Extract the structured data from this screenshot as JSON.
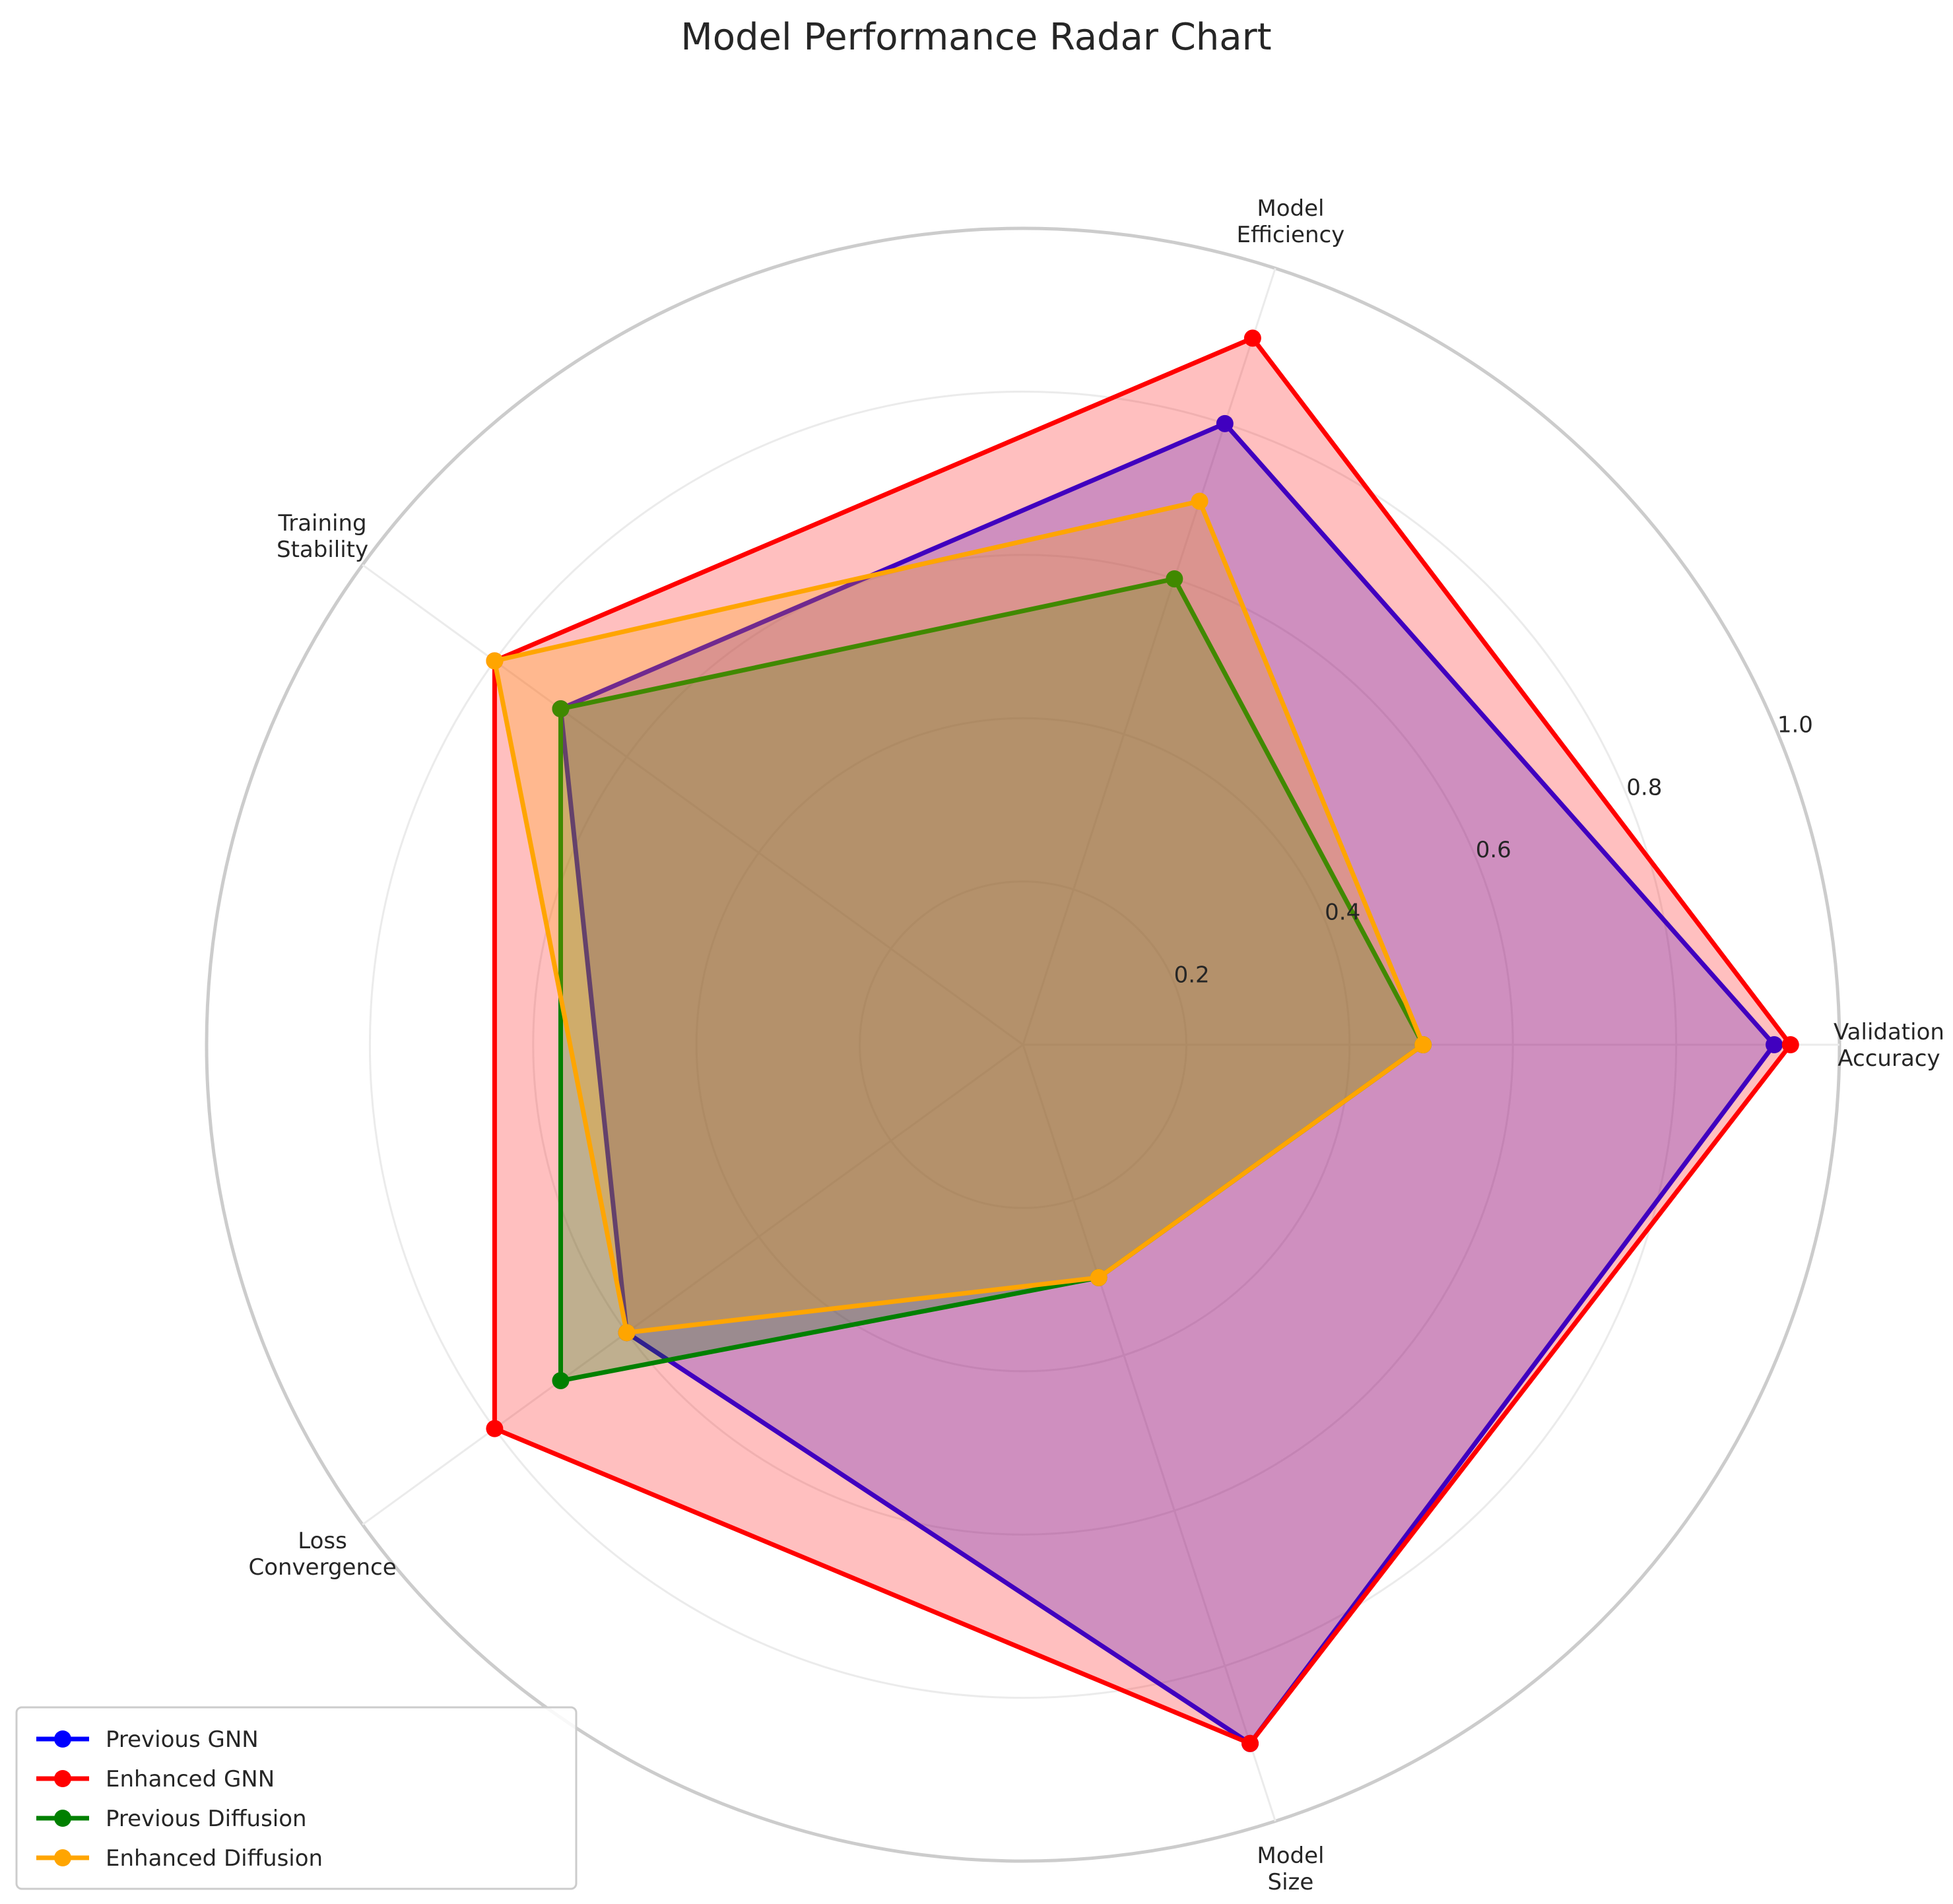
{
  "chart_data": {
    "type": "radar",
    "title": "Model Performance Radar Chart",
    "axes": [
      [
        "Validation",
        "Accuracy"
      ],
      [
        "Model",
        "Efficiency"
      ],
      [
        "Training",
        "Stability"
      ],
      [
        "Loss",
        "Convergence"
      ],
      [
        "Model",
        "Size"
      ]
    ],
    "rlim": [
      0,
      1.0
    ],
    "r_ticks": [
      "0.2",
      "0.4",
      "0.6",
      "0.8",
      "1.0"
    ],
    "grid": true,
    "legend_position": "lower-left",
    "series": [
      {
        "name": "Previous GNN",
        "values": [
          0.92,
          0.8,
          0.7,
          0.6,
          0.9
        ],
        "color": "#0000ff"
      },
      {
        "name": "Enhanced GNN",
        "values": [
          0.94,
          0.91,
          0.8,
          0.8,
          0.9
        ],
        "color": "#ff0000"
      },
      {
        "name": "Previous Diffusion",
        "values": [
          0.49,
          0.6,
          0.7,
          0.7,
          0.3
        ],
        "color": "#008000"
      },
      {
        "name": "Enhanced Diffusion",
        "values": [
          0.49,
          0.7,
          0.8,
          0.6,
          0.3
        ],
        "color": "#ffa500"
      }
    ]
  }
}
